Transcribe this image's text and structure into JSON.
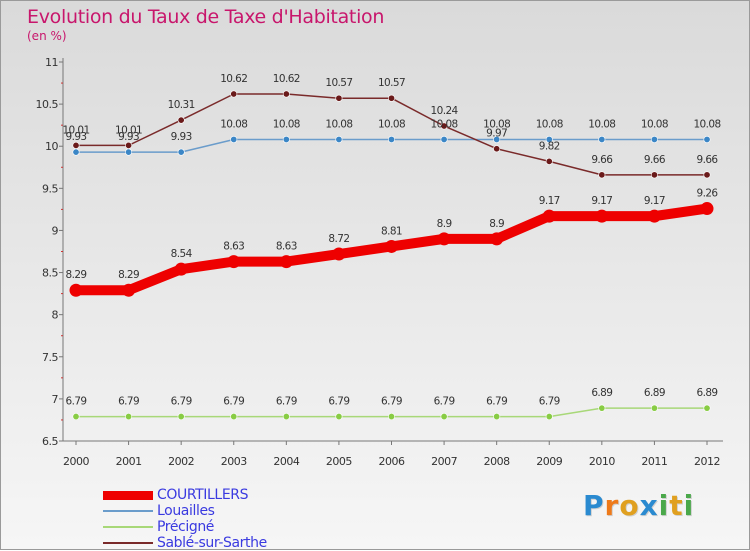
{
  "header": {
    "title": "Evolution du Taux de Taxe d'Habitation",
    "subtitle": "(en %)"
  },
  "logo": {
    "text": "Proxiti"
  },
  "chart_data": {
    "type": "line",
    "title": "Evolution du Taux de Taxe d'Habitation",
    "subtitle": "(en %)",
    "xlabel": "",
    "ylabel": "",
    "x": [
      "2000",
      "2001",
      "2002",
      "2003",
      "2004",
      "2005",
      "2006",
      "2007",
      "2008",
      "2009",
      "2010",
      "2011",
      "2012"
    ],
    "ylim": [
      6.5,
      11
    ],
    "yticks": [
      "6.5",
      "7",
      "7.5",
      "8",
      "8.5",
      "9",
      "9.5",
      "10",
      "10.5",
      "11"
    ],
    "grid": false,
    "legend_position": "bottom-left",
    "series": [
      {
        "name": "COURTILLERS",
        "color": "#ee0000",
        "emphasis": true,
        "values": [
          8.29,
          8.29,
          8.54,
          8.63,
          8.63,
          8.72,
          8.81,
          8.9,
          8.9,
          9.17,
          9.17,
          9.17,
          9.26
        ],
        "labels": [
          "8.29",
          "8.29",
          "8.54",
          "8.63",
          "8.63",
          "8.72",
          "8.81",
          "8.9",
          "8.9",
          "9.17",
          "9.17",
          "9.17",
          "9.26"
        ]
      },
      {
        "name": "Louailles",
        "color": "#6a9ccb",
        "marker_color": "#3b86c6",
        "values": [
          9.93,
          9.93,
          9.93,
          10.08,
          10.08,
          10.08,
          10.08,
          10.08,
          10.08,
          10.08,
          10.08,
          10.08,
          10.08
        ],
        "labels": [
          "9.93",
          "9.93",
          "9.93",
          "10.08",
          "10.08",
          "10.08",
          "10.08",
          "10.08",
          "10.08",
          "10.08",
          "10.08",
          "10.08",
          "10.08"
        ]
      },
      {
        "name": "Précigné",
        "color": "#a8d878",
        "marker_color": "#88cc44",
        "values": [
          6.79,
          6.79,
          6.79,
          6.79,
          6.79,
          6.79,
          6.79,
          6.79,
          6.79,
          6.79,
          6.89,
          6.89,
          6.89
        ],
        "labels": [
          "6.79",
          "6.79",
          "6.79",
          "6.79",
          "6.79",
          "6.79",
          "6.79",
          "6.79",
          "6.79",
          "6.79",
          "6.89",
          "6.89",
          "6.89"
        ]
      },
      {
        "name": "Sablé-sur-Sarthe",
        "color": "#7a2a2a",
        "marker_color": "#6a1a1a",
        "values": [
          10.01,
          10.01,
          10.31,
          10.62,
          10.62,
          10.57,
          10.57,
          10.24,
          9.97,
          9.82,
          9.66,
          9.66,
          9.66
        ],
        "labels": [
          "10.01",
          "10.01",
          "10.31",
          "10.62",
          "10.62",
          "10.57",
          "10.57",
          "10.24",
          "9.97",
          "9.82",
          "9.66",
          "9.66",
          "9.66"
        ]
      }
    ]
  }
}
